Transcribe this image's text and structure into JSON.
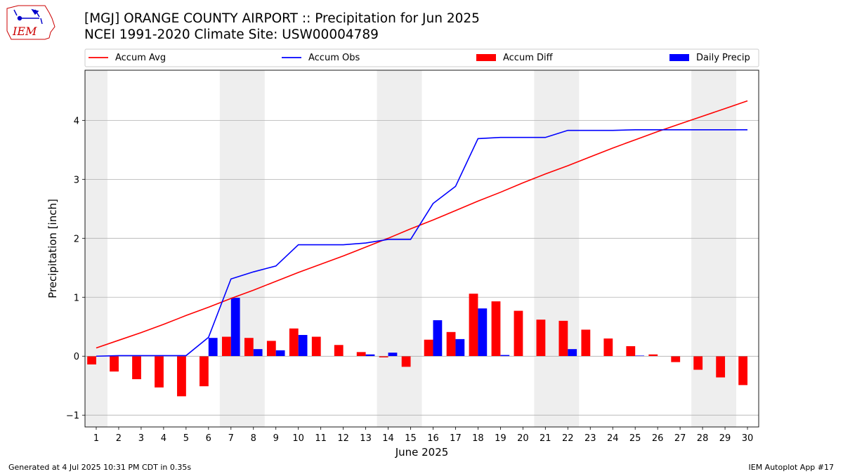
{
  "header": {
    "title_line1": "[MGJ] ORANGE COUNTY AIRPORT :: Precipitation for Jun 2025",
    "title_line2": "NCEI 1991-2020 Climate Site: USW00004789"
  },
  "logo": {
    "text": "IEM"
  },
  "footer": {
    "left": "Generated at 4 Jul 2025 10:31 PM CDT in 0.35s",
    "right": "IEM Autoplot App #17"
  },
  "colors": {
    "avg": "#ff0000",
    "obs": "#0000ff",
    "diff": "#ff0000",
    "daily": "#0000ff",
    "weekend": "#eeeeee",
    "grid": "#b0b0b0"
  },
  "chart_data": {
    "type": "bar",
    "xlabel": "June 2025",
    "ylabel": "Precipitation [inch]",
    "xlim": [
      0.5,
      30.5
    ],
    "ylim": [
      -1.2,
      4.85
    ],
    "yticks": [
      -1,
      0,
      1,
      2,
      3,
      4
    ],
    "x": [
      1,
      2,
      3,
      4,
      5,
      6,
      7,
      8,
      9,
      10,
      11,
      12,
      13,
      14,
      15,
      16,
      17,
      18,
      19,
      20,
      21,
      22,
      23,
      24,
      25,
      26,
      27,
      28,
      29,
      30
    ],
    "weekend_spans": [
      [
        0.5,
        1.5
      ],
      [
        6.5,
        8.5
      ],
      [
        13.5,
        15.5
      ],
      [
        20.5,
        22.5
      ],
      [
        27.5,
        29.5
      ]
    ],
    "grid": "horizontal",
    "legend_position": "top",
    "series": [
      {
        "name": "Accum Avg",
        "kind": "line",
        "values": [
          0.14,
          0.27,
          0.4,
          0.54,
          0.69,
          0.83,
          0.98,
          1.12,
          1.27,
          1.42,
          1.56,
          1.7,
          1.85,
          2.0,
          2.16,
          2.31,
          2.47,
          2.63,
          2.78,
          2.94,
          3.09,
          3.23,
          3.38,
          3.53,
          3.67,
          3.81,
          3.94,
          4.07,
          4.2,
          4.33
        ]
      },
      {
        "name": "Accum Obs",
        "kind": "line",
        "values": [
          0.0,
          0.01,
          0.01,
          0.01,
          0.01,
          0.32,
          1.31,
          1.43,
          1.53,
          1.89,
          1.89,
          1.89,
          1.92,
          1.98,
          1.98,
          2.59,
          2.88,
          3.69,
          3.71,
          3.71,
          3.71,
          3.83,
          3.83,
          3.83,
          3.84,
          3.84,
          3.84,
          3.84,
          3.84,
          3.84
        ]
      },
      {
        "name": "Accum Diff",
        "kind": "bar",
        "values": [
          -0.14,
          -0.26,
          -0.39,
          -0.53,
          -0.68,
          -0.51,
          0.33,
          0.31,
          0.26,
          0.47,
          0.33,
          0.19,
          0.07,
          -0.02,
          -0.18,
          0.28,
          0.41,
          1.06,
          0.93,
          0.77,
          0.62,
          0.6,
          0.45,
          0.3,
          0.17,
          0.03,
          -0.1,
          -0.23,
          -0.36,
          -0.49
        ]
      },
      {
        "name": "Daily Precip",
        "kind": "bar",
        "values": [
          0.0,
          0.01,
          0.0,
          0.0,
          0.0,
          0.31,
          0.99,
          0.12,
          0.1,
          0.36,
          0.0,
          0.0,
          0.03,
          0.06,
          0.0,
          0.61,
          0.29,
          0.81,
          0.02,
          0.0,
          0.0,
          0.12,
          0.0,
          0.0,
          0.01,
          0.0,
          0.0,
          0.0,
          0.0,
          0.0
        ]
      }
    ]
  }
}
